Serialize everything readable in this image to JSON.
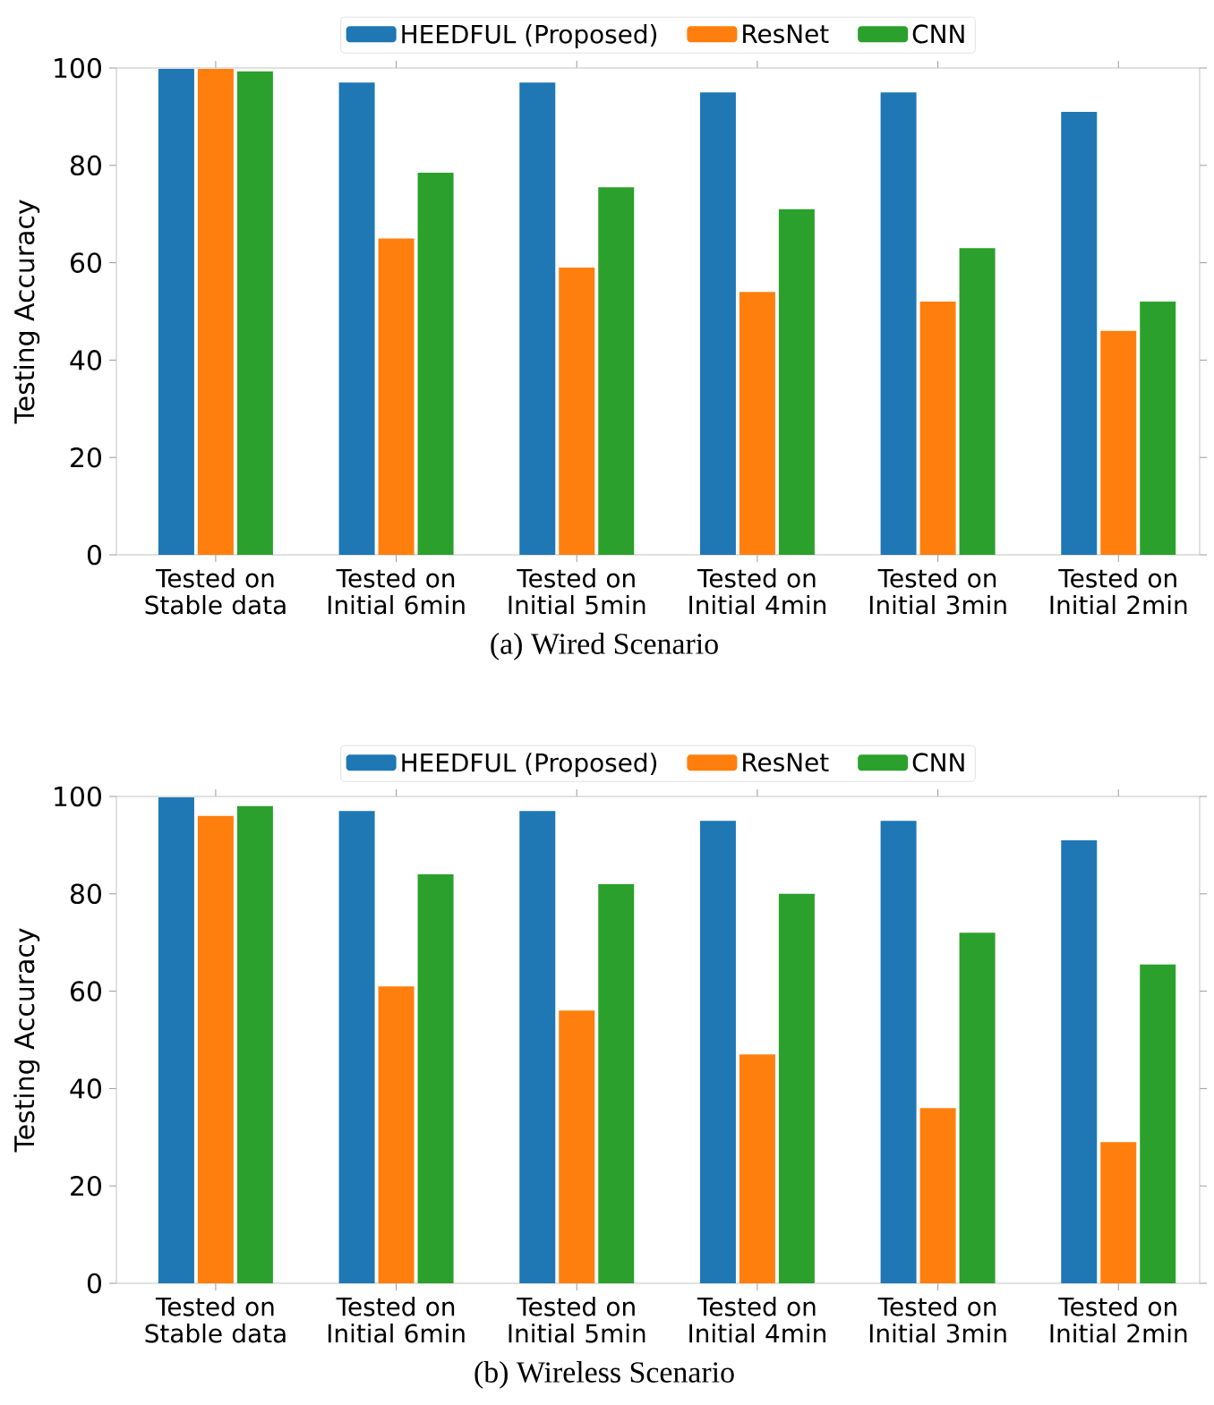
{
  "chart_data": [
    {
      "type": "bar",
      "title": "(a) Wired Scenario",
      "ylabel": "Testing Accuracy",
      "categories": [
        "Tested on Stable data",
        "Tested on Initial 6min",
        "Tested on Initial 5min",
        "Tested on Initial 4min",
        "Tested on Initial 3min",
        "Tested on Initial 2min"
      ],
      "series": [
        {
          "name": "HEEDFUL (Proposed)",
          "color": "#1f77b4",
          "values": [
            99.8,
            97,
            97,
            95,
            95,
            91
          ]
        },
        {
          "name": "ResNet",
          "color": "#ff7f0e",
          "values": [
            99.8,
            65,
            59,
            54,
            52,
            46
          ]
        },
        {
          "name": "CNN",
          "color": "#2ca02c",
          "values": [
            99.3,
            78.5,
            75.5,
            71,
            63,
            52
          ]
        }
      ],
      "ylim": [
        0,
        100
      ],
      "yticks": [
        0,
        20,
        40,
        60,
        80,
        100
      ],
      "grid": false,
      "legend": "top"
    },
    {
      "type": "bar",
      "title": "(b) Wireless Scenario",
      "ylabel": "Testing Accuracy",
      "categories": [
        "Tested on Stable data",
        "Tested on Initial 6min",
        "Tested on Initial 5min",
        "Tested on Initial 4min",
        "Tested on Initial 3min",
        "Tested on Initial 2min"
      ],
      "series": [
        {
          "name": "HEEDFUL (Proposed)",
          "color": "#1f77b4",
          "values": [
            99.8,
            97,
            97,
            95,
            95,
            91
          ]
        },
        {
          "name": "ResNet",
          "color": "#ff7f0e",
          "values": [
            96,
            61,
            56,
            47,
            36,
            29
          ]
        },
        {
          "name": "CNN",
          "color": "#2ca02c",
          "values": [
            98,
            84,
            82,
            80,
            72,
            65.5
          ]
        }
      ],
      "ylim": [
        0,
        100
      ],
      "yticks": [
        0,
        20,
        40,
        60,
        80,
        100
      ],
      "grid": false,
      "legend": "top"
    }
  ]
}
